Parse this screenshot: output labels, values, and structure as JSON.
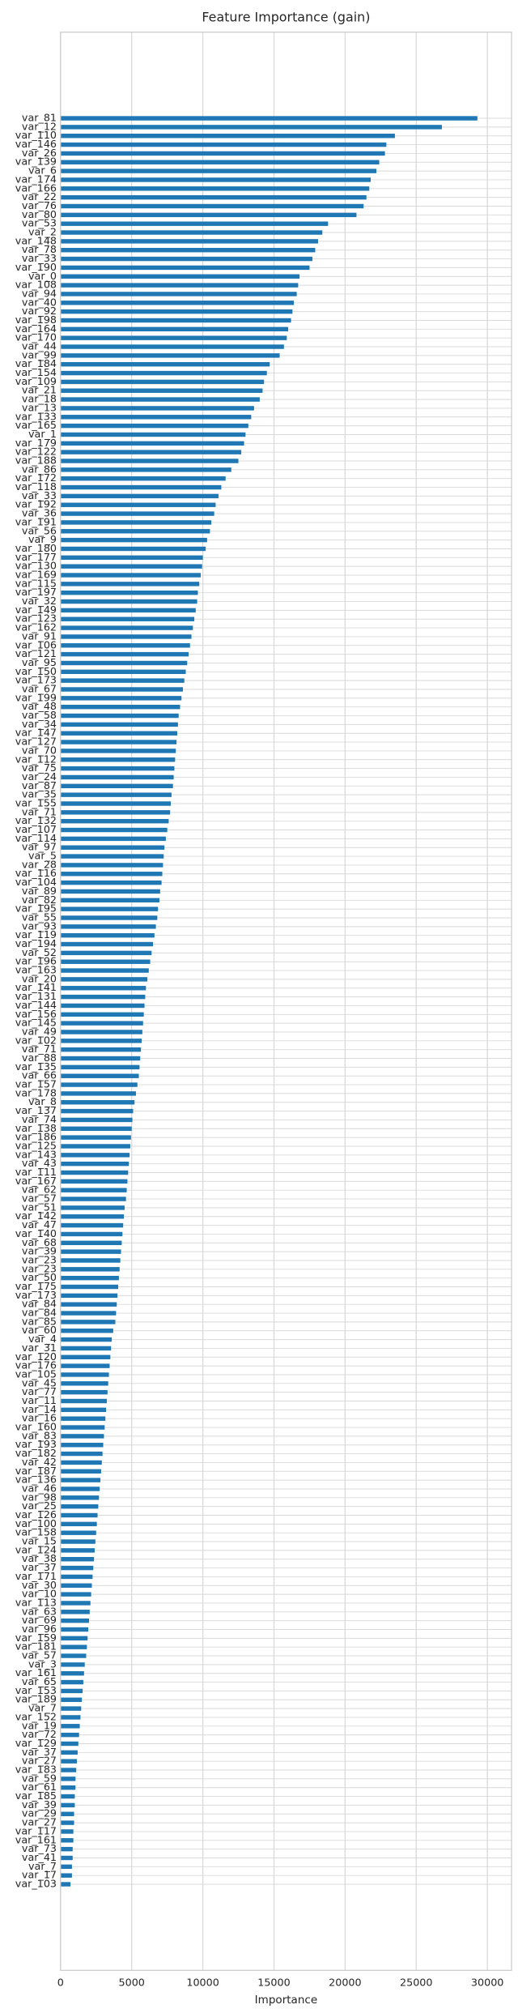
{
  "chart_data": {
    "type": "bar",
    "orientation": "horizontal",
    "title": "Feature Importance (gain)",
    "xlabel": "Importance",
    "categories": [
      "var_81",
      "var_12",
      "var_110",
      "var_146",
      "var_26",
      "var_139",
      "var_6",
      "var_174",
      "var_166",
      "var_22",
      "var_76",
      "var_80",
      "var_53",
      "var_2",
      "var_148",
      "var_78",
      "var_33",
      "var_190",
      "var_0",
      "var_108",
      "var_94",
      "var_40",
      "var_92",
      "var_198",
      "var_164",
      "var_170",
      "var_44",
      "var_99",
      "var_184",
      "var_154",
      "var_109",
      "var_21",
      "var_18",
      "var_13",
      "var_133",
      "var_165",
      "var_1",
      "var_179",
      "var_122",
      "var_188",
      "var_86",
      "var_172",
      "var_118",
      "var_33",
      "var_192",
      "var_36",
      "var_191",
      "var_56",
      "var_9",
      "var_180",
      "var_177",
      "var_130",
      "var_169",
      "var_115",
      "var_197",
      "var_32",
      "var_149",
      "var_123",
      "var_162",
      "var_91",
      "var_106",
      "var_121",
      "var_95",
      "var_150",
      "var_173",
      "var_67",
      "var_199",
      "var_48",
      "var_58",
      "var_34",
      "var_147",
      "var_127",
      "var_70",
      "var_112",
      "var_75",
      "var_24",
      "var_87",
      "var_35",
      "var_155",
      "var_71",
      "var_132",
      "var_107",
      "var_114",
      "var_97",
      "var_5",
      "var_28",
      "var_116",
      "var_104",
      "var_89",
      "var_82",
      "var_195",
      "var_55",
      "var_93",
      "var_119",
      "var_194",
      "var_52",
      "var_196",
      "var_163",
      "var_20",
      "var_141",
      "var_131",
      "var_144",
      "var_156",
      "var_145",
      "var_49",
      "var_102",
      "var_71",
      "var_88",
      "var_135",
      "var_66",
      "var_157",
      "var_178",
      "var_8",
      "var_137",
      "var_74",
      "var_138",
      "var_186",
      "var_125",
      "var_143",
      "var_43",
      "var_111",
      "var_167",
      "var_62",
      "var_57",
      "var_51",
      "var_142",
      "var_47",
      "var_140",
      "var_68",
      "var_39",
      "var_23",
      "var_23",
      "var_50",
      "var_175",
      "var_173",
      "var_84",
      "var_84",
      "var_85",
      "var_60",
      "var_4",
      "var_31",
      "var_120",
      "var_176",
      "var_105",
      "var_45",
      "var_77",
      "var_11",
      "var_14",
      "var_16",
      "var_160",
      "var_83",
      "var_193",
      "var_182",
      "var_42",
      "var_187",
      "var_136",
      "var_46",
      "var_98",
      "var_25",
      "var_126",
      "var_100",
      "var_158",
      "var_15",
      "var_124",
      "var_38",
      "var_37",
      "var_171",
      "var_30",
      "var_10",
      "var_113",
      "var_63",
      "var_69",
      "var_96",
      "var_159",
      "var_181",
      "var_57",
      "var_3",
      "var_161",
      "var_65",
      "var_153",
      "var_189",
      "var_7",
      "var_152",
      "var_19",
      "var_72",
      "var_129",
      "var_37",
      "var_27",
      "var_183",
      "var_59",
      "var_61",
      "var_185",
      "var_39",
      "var_29",
      "var_27",
      "var_117",
      "var_161",
      "var_73",
      "var_41",
      "var_7",
      "var_17",
      "var_103"
    ],
    "values": [
      29300,
      26800,
      23500,
      22900,
      22800,
      22400,
      22200,
      21800,
      21700,
      21500,
      21300,
      20800,
      18800,
      18400,
      18100,
      17900,
      17700,
      17500,
      16800,
      16700,
      16600,
      16400,
      16300,
      16200,
      16000,
      15900,
      15700,
      15400,
      14700,
      14500,
      14300,
      14200,
      14000,
      13600,
      13400,
      13200,
      13000,
      12900,
      12700,
      12500,
      12000,
      11600,
      11300,
      11100,
      10900,
      10800,
      10600,
      10500,
      10300,
      10200,
      10000,
      9950,
      9850,
      9750,
      9650,
      9600,
      9500,
      9400,
      9300,
      9200,
      9100,
      9000,
      8900,
      8800,
      8700,
      8600,
      8500,
      8400,
      8300,
      8250,
      8200,
      8150,
      8100,
      8050,
      8000,
      7950,
      7900,
      7800,
      7750,
      7700,
      7600,
      7500,
      7400,
      7300,
      7250,
      7200,
      7150,
      7100,
      7000,
      6950,
      6850,
      6800,
      6700,
      6600,
      6500,
      6400,
      6300,
      6200,
      6100,
      6000,
      5950,
      5900,
      5850,
      5800,
      5750,
      5700,
      5650,
      5600,
      5550,
      5500,
      5400,
      5300,
      5200,
      5100,
      5050,
      5000,
      4950,
      4900,
      4850,
      4800,
      4750,
      4700,
      4650,
      4600,
      4500,
      4450,
      4400,
      4350,
      4300,
      4250,
      4200,
      4150,
      4100,
      4050,
      4000,
      3950,
      3900,
      3850,
      3700,
      3600,
      3550,
      3500,
      3450,
      3400,
      3350,
      3300,
      3250,
      3200,
      3150,
      3100,
      3050,
      3000,
      2950,
      2900,
      2850,
      2800,
      2750,
      2700,
      2650,
      2600,
      2550,
      2500,
      2450,
      2400,
      2350,
      2300,
      2250,
      2200,
      2150,
      2100,
      2050,
      2000,
      1950,
      1900,
      1850,
      1800,
      1700,
      1650,
      1600,
      1550,
      1500,
      1450,
      1400,
      1350,
      1300,
      1250,
      1200,
      1150,
      1100,
      1050,
      1050,
      1000,
      1000,
      950,
      950,
      900,
      900,
      850,
      850,
      800,
      800,
      700
    ],
    "color": "#1f77b4",
    "xlim": [
      0,
      31700
    ],
    "xticks": [
      0,
      5000,
      10000,
      15000,
      20000,
      25000,
      30000
    ],
    "grid": true
  }
}
